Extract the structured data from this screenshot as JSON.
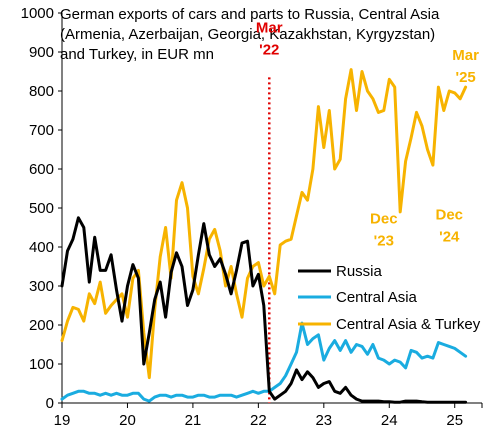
{
  "chart_data": {
    "type": "line",
    "title_lines": [
      "German exports of cars and parts to Russia, Central Asia",
      "(Armenia, Azerbaijan, Georgia, Kazakhstan, Kyrgyzstan)",
      "and Turkey, in EUR mn"
    ],
    "xlabel": "",
    "ylabel": "",
    "x_start": "2019-01",
    "x_tick_labels": [
      "19",
      "20",
      "21",
      "22",
      "23",
      "24",
      "25"
    ],
    "xlim": [
      "2019-01",
      "2025-06"
    ],
    "ylim": [
      0,
      1000
    ],
    "y_ticks": [
      0,
      100,
      200,
      300,
      400,
      500,
      600,
      700,
      800,
      900,
      1000
    ],
    "grid": false,
    "legend_position": "right",
    "series": [
      {
        "name": "Russia",
        "color": "#000000",
        "values": [
          300,
          390,
          420,
          475,
          450,
          310,
          425,
          340,
          340,
          380,
          290,
          210,
          300,
          355,
          320,
          100,
          180,
          265,
          310,
          220,
          335,
          385,
          350,
          250,
          290,
          380,
          460,
          380,
          350,
          370,
          330,
          280,
          340,
          410,
          415,
          300,
          330,
          250,
          30,
          10,
          20,
          30,
          50,
          85,
          60,
          80,
          65,
          40,
          50,
          55,
          30,
          25,
          40,
          20,
          10,
          5,
          5,
          5,
          5,
          3,
          3,
          2,
          2,
          5,
          5,
          5,
          3,
          2,
          2,
          2,
          2,
          2,
          2,
          2,
          2
        ]
      },
      {
        "name": "Central Asia",
        "color": "#1AACE0",
        "values": [
          10,
          20,
          25,
          30,
          30,
          25,
          25,
          20,
          25,
          20,
          25,
          20,
          20,
          25,
          25,
          10,
          5,
          15,
          20,
          20,
          15,
          20,
          20,
          15,
          15,
          20,
          20,
          15,
          15,
          20,
          20,
          20,
          15,
          20,
          25,
          30,
          25,
          30,
          30,
          40,
          50,
          70,
          100,
          130,
          205,
          150,
          165,
          175,
          110,
          140,
          160,
          135,
          160,
          130,
          150,
          145,
          125,
          150,
          115,
          110,
          100,
          110,
          105,
          90,
          135,
          130,
          115,
          120,
          115,
          155,
          150,
          145,
          140,
          130,
          120
        ]
      },
      {
        "name": "Central Asia & Turkey",
        "color": "#F7B300",
        "values": [
          160,
          210,
          245,
          240,
          210,
          280,
          255,
          310,
          230,
          250,
          265,
          280,
          220,
          320,
          340,
          180,
          65,
          240,
          375,
          450,
          320,
          520,
          565,
          500,
          325,
          280,
          345,
          420,
          445,
          390,
          300,
          350,
          280,
          220,
          320,
          350,
          360,
          300,
          325,
          280,
          405,
          415,
          420,
          480,
          540,
          520,
          600,
          760,
          655,
          750,
          600,
          625,
          780,
          855,
          750,
          850,
          800,
          780,
          745,
          750,
          830,
          810,
          490,
          620,
          680,
          745,
          710,
          650,
          610,
          810,
          750,
          800,
          795,
          780,
          810
        ]
      }
    ],
    "annotations": [
      {
        "text_lines": [
          "Mar",
          "'22"
        ],
        "x": "2022-03",
        "y": 950,
        "color": "#E00000"
      },
      {
        "text_lines": [
          "Dec",
          "'23"
        ],
        "x": "2023-12",
        "y": 460,
        "color": "#F7B300"
      },
      {
        "text_lines": [
          "Dec",
          "'24"
        ],
        "x": "2024-12",
        "y": 470,
        "color": "#F7B300"
      },
      {
        "text_lines": [
          "Mar",
          "'25"
        ],
        "x": "2025-03",
        "y": 880,
        "color": "#F7B300"
      }
    ],
    "vline": {
      "x": "2022-03",
      "color": "#E00000",
      "style": "dotted"
    }
  }
}
